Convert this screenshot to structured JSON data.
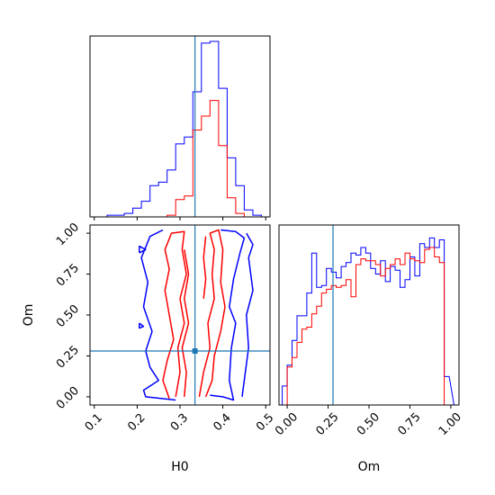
{
  "chart_data": {
    "type": "corner",
    "parameters": [
      "H0",
      "Om"
    ],
    "truth": {
      "H0": 0.335,
      "Om": 0.28
    },
    "colors": {
      "blue": "#0000ff",
      "red": "#ff0000",
      "truth": "#1f77b4"
    },
    "panels": [
      {
        "id": "hist_H0",
        "type": "step-histogram",
        "x": {
          "label": "",
          "lim": [
            0.09,
            0.51
          ]
        },
        "bin_edges": [
          0.11,
          0.13,
          0.15,
          0.17,
          0.19,
          0.21,
          0.23,
          0.25,
          0.27,
          0.29,
          0.31,
          0.33,
          0.35,
          0.37,
          0.39,
          0.41,
          0.43,
          0.45,
          0.47,
          0.49
        ],
        "series": [
          {
            "color": "blue",
            "values": [
              0,
              1,
              1,
              2,
              5,
              9,
              18,
              20,
              27,
              42,
              46,
              72,
              100,
              101,
              74,
              34,
              18,
              4,
              1
            ]
          },
          {
            "color": "red",
            "values": [
              0,
              0,
              0,
              0,
              0,
              0,
              0,
              0,
              1,
              10,
              12,
              50,
              58,
              67,
              41,
              11,
              2,
              0,
              0
            ]
          }
        ]
      },
      {
        "id": "contour_H0_Om",
        "type": "contour",
        "x": {
          "label": "H0",
          "lim": [
            0.09,
            0.51
          ],
          "ticks": [
            0.1,
            0.2,
            0.3,
            0.4,
            0.5
          ],
          "tick_labels": [
            "0.1",
            "0.2",
            "0.3",
            "0.4",
            "0.5"
          ]
        },
        "y": {
          "label": "Om",
          "lim": [
            -0.05,
            1.05
          ],
          "ticks": [
            0.0,
            0.25,
            0.5,
            0.75,
            1.0
          ],
          "tick_labels": [
            "0.00",
            "0.25",
            "0.50",
            "0.75",
            "1.00"
          ]
        },
        "contours": [
          {
            "color": "blue",
            "points": [
              [
                0.395,
                1.02
              ],
              [
                0.43,
                1.01
              ],
              [
                0.45,
                0.97
              ],
              [
                0.44,
                0.88
              ],
              [
                0.425,
                0.72
              ],
              [
                0.415,
                0.55
              ],
              [
                0.43,
                0.45
              ],
              [
                0.42,
                0.3
              ],
              [
                0.415,
                0.1
              ],
              [
                0.425,
                -0.02
              ],
              [
                0.4,
                0.0
              ],
              [
                0.37,
                0.01
              ]
            ]
          },
          {
            "color": "blue",
            "points": [
              [
                0.29,
                -0.02
              ],
              [
                0.22,
                0.0
              ],
              [
                0.215,
                0.04
              ],
              [
                0.25,
                0.1
              ],
              [
                0.23,
                0.18
              ],
              [
                0.22,
                0.28
              ],
              [
                0.235,
                0.4
              ],
              [
                0.215,
                0.55
              ],
              [
                0.225,
                0.7
              ],
              [
                0.21,
                0.85
              ],
              [
                0.23,
                0.98
              ],
              [
                0.26,
                1.02
              ]
            ]
          },
          {
            "color": "blue",
            "points": [
              [
                0.455,
                1.0
              ],
              [
                0.47,
                0.93
              ],
              [
                0.46,
                0.85
              ],
              [
                0.47,
                0.65
              ],
              [
                0.455,
                0.5
              ],
              [
                0.46,
                0.3
              ],
              [
                0.45,
                0.1
              ],
              [
                0.445,
                0.0
              ]
            ]
          },
          {
            "color": "blue",
            "points": [
              [
                0.205,
                0.88
              ],
              [
                0.22,
                0.9
              ],
              [
                0.205,
                0.92
              ],
              [
                0.205,
                0.88
              ]
            ]
          },
          {
            "color": "blue",
            "points": [
              [
                0.205,
                0.45
              ],
              [
                0.215,
                0.43
              ],
              [
                0.205,
                0.42
              ],
              [
                0.205,
                0.45
              ]
            ]
          },
          {
            "color": "red",
            "points": [
              [
                0.275,
                -0.01
              ],
              [
                0.26,
                0.1
              ],
              [
                0.27,
                0.22
              ],
              [
                0.285,
                0.35
              ],
              [
                0.275,
                0.5
              ],
              [
                0.265,
                0.65
              ],
              [
                0.275,
                0.78
              ],
              [
                0.265,
                0.9
              ],
              [
                0.28,
                1.0
              ],
              [
                0.31,
                1.01
              ],
              [
                0.305,
                0.9
              ],
              [
                0.315,
                0.75
              ],
              [
                0.3,
                0.6
              ],
              [
                0.31,
                0.45
              ],
              [
                0.295,
                0.3
              ],
              [
                0.3,
                0.15
              ],
              [
                0.29,
                0.0
              ]
            ]
          },
          {
            "color": "red",
            "points": [
              [
                0.345,
                0.0
              ],
              [
                0.355,
                0.15
              ],
              [
                0.37,
                0.3
              ],
              [
                0.365,
                0.45
              ],
              [
                0.38,
                0.6
              ],
              [
                0.375,
                0.75
              ],
              [
                0.38,
                0.9
              ],
              [
                0.37,
                1.0
              ],
              [
                0.39,
                1.02
              ],
              [
                0.4,
                0.9
              ],
              [
                0.395,
                0.7
              ],
              [
                0.405,
                0.55
              ],
              [
                0.395,
                0.4
              ],
              [
                0.38,
                0.25
              ],
              [
                0.375,
                0.1
              ],
              [
                0.36,
                0.0
              ]
            ]
          },
          {
            "color": "red",
            "points": [
              [
                0.31,
                0.0
              ],
              [
                0.315,
                0.15
              ],
              [
                0.305,
                0.3
              ],
              [
                0.32,
                0.45
              ],
              [
                0.31,
                0.6
              ],
              [
                0.32,
                0.75
              ],
              [
                0.31,
                0.9
              ]
            ]
          },
          {
            "color": "red",
            "points": [
              [
                0.355,
                0.6
              ],
              [
                0.36,
                0.72
              ],
              [
                0.355,
                0.85
              ],
              [
                0.36,
                0.98
              ]
            ]
          }
        ]
      },
      {
        "id": "hist_Om",
        "type": "step-histogram",
        "x": {
          "label": "Om",
          "lim": [
            -0.05,
            1.05
          ],
          "ticks": [
            0.0,
            0.25,
            0.5,
            0.75,
            1.0
          ],
          "tick_labels": [
            "0.00",
            "0.25",
            "0.50",
            "0.75",
            "1.00"
          ]
        },
        "bin_edges": [
          -0.03,
          0.0,
          0.03,
          0.06,
          0.09,
          0.12,
          0.15,
          0.18,
          0.21,
          0.24,
          0.27,
          0.3,
          0.33,
          0.36,
          0.39,
          0.42,
          0.45,
          0.48,
          0.51,
          0.54,
          0.57,
          0.6,
          0.63,
          0.66,
          0.69,
          0.72,
          0.75,
          0.78,
          0.81,
          0.84,
          0.87,
          0.9,
          0.93,
          0.96,
          0.99,
          1.02
        ],
        "series": [
          {
            "color": "blue",
            "values": [
              10,
              21,
              34,
              47,
              47,
              59,
              80,
              62,
              63,
              72,
              70,
              67,
              73,
              75,
              80,
              79,
              83,
              80,
              72,
              69,
              76,
              65,
              73,
              71,
              62,
              66,
              78,
              68,
              85,
              83,
              88,
              83,
              87,
              15
            ]
          },
          {
            "color": "red",
            "values": [
              0,
              20,
              25,
              33,
              40,
              41,
              48,
              52,
              59,
              61,
              63,
              62,
              63,
              66,
              57,
              74,
              77,
              76,
              76,
              74,
              68,
              72,
              74,
              77,
              74,
              80,
              77,
              76,
              75,
              82,
              83,
              78,
              75,
              0
            ]
          }
        ]
      }
    ]
  }
}
